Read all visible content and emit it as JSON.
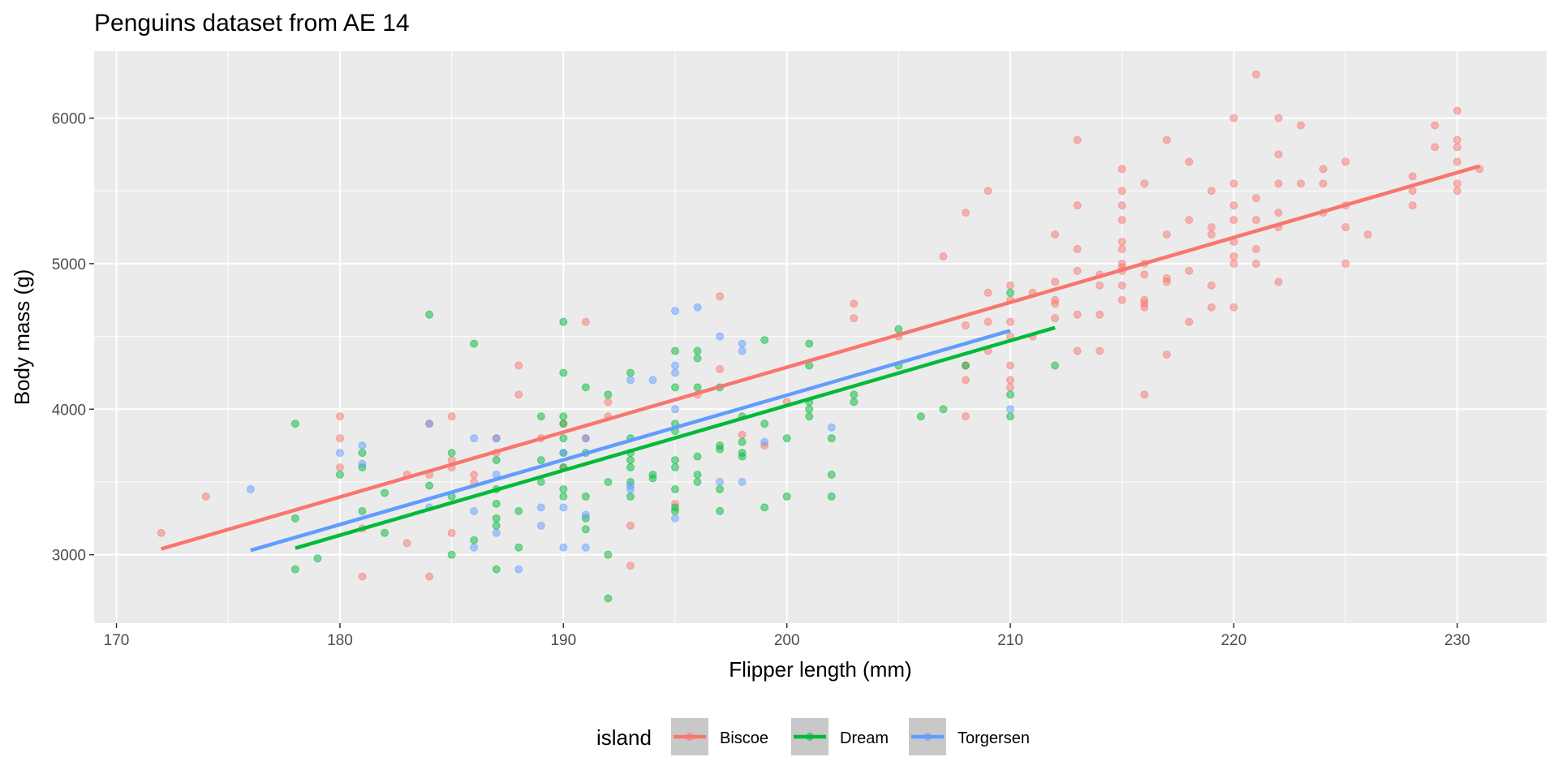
{
  "chart_data": {
    "type": "scatter",
    "title": "Penguins dataset from AE 14",
    "xlabel": "Flipper length (mm)",
    "ylabel": "Body mass (g)",
    "xlim": [
      169,
      234
    ],
    "ylim": [
      2530,
      6460
    ],
    "x_ticks": [
      170,
      180,
      190,
      200,
      210,
      220,
      230
    ],
    "y_ticks": [
      3000,
      4000,
      5000,
      6000
    ],
    "grid": true,
    "legend": {
      "title": "island",
      "placement": "bottom"
    },
    "series": [
      {
        "name": "Biscoe",
        "color": "#F8766D",
        "fit": {
          "x": [
            172,
            231
          ],
          "y": [
            3040,
            5670
          ]
        },
        "points": [
          [
            172,
            3150
          ],
          [
            174,
            3400
          ],
          [
            180,
            3950
          ],
          [
            180,
            3800
          ],
          [
            180,
            3600
          ],
          [
            181,
            2850
          ],
          [
            181,
            3180
          ],
          [
            183,
            3550
          ],
          [
            183,
            3080
          ],
          [
            184,
            3550
          ],
          [
            184,
            2850
          ],
          [
            184,
            3900
          ],
          [
            185,
            3950
          ],
          [
            185,
            3650
          ],
          [
            185,
            3150
          ],
          [
            185,
            3600
          ],
          [
            186,
            3550
          ],
          [
            186,
            3500
          ],
          [
            187,
            3800
          ],
          [
            187,
            3700
          ],
          [
            188,
            4300
          ],
          [
            188,
            4100
          ],
          [
            189,
            3800
          ],
          [
            190,
            3900
          ],
          [
            190,
            3600
          ],
          [
            191,
            4600
          ],
          [
            191,
            3800
          ],
          [
            192,
            4050
          ],
          [
            192,
            3950
          ],
          [
            193,
            3200
          ],
          [
            193,
            2925
          ],
          [
            195,
            3350
          ],
          [
            196,
            4100
          ],
          [
            197,
            4775
          ],
          [
            197,
            4275
          ],
          [
            198,
            3825
          ],
          [
            199,
            3750
          ],
          [
            200,
            4050
          ],
          [
            203,
            4725
          ],
          [
            203,
            4625
          ],
          [
            205,
            4500
          ],
          [
            207,
            5050
          ],
          [
            208,
            5350
          ],
          [
            208,
            4575
          ],
          [
            208,
            4200
          ],
          [
            208,
            3950
          ],
          [
            208,
            4300
          ],
          [
            209,
            5500
          ],
          [
            209,
            4800
          ],
          [
            209,
            4600
          ],
          [
            209,
            4400
          ],
          [
            210,
            4850
          ],
          [
            210,
            4750
          ],
          [
            210,
            4600
          ],
          [
            210,
            4500
          ],
          [
            210,
            4300
          ],
          [
            210,
            4200
          ],
          [
            210,
            4150
          ],
          [
            211,
            4800
          ],
          [
            211,
            4500
          ],
          [
            212,
            5200
          ],
          [
            212,
            4875
          ],
          [
            212,
            4750
          ],
          [
            212,
            4725
          ],
          [
            212,
            4625
          ],
          [
            213,
            5850
          ],
          [
            213,
            5400
          ],
          [
            213,
            5100
          ],
          [
            213,
            4950
          ],
          [
            213,
            4650
          ],
          [
            213,
            4400
          ],
          [
            214,
            4925
          ],
          [
            214,
            4850
          ],
          [
            214,
            4650
          ],
          [
            214,
            4400
          ],
          [
            215,
            5650
          ],
          [
            215,
            5500
          ],
          [
            215,
            5400
          ],
          [
            215,
            5300
          ],
          [
            215,
            5150
          ],
          [
            215,
            5100
          ],
          [
            215,
            5000
          ],
          [
            215,
            4975
          ],
          [
            215,
            4950
          ],
          [
            215,
            4850
          ],
          [
            215,
            4750
          ],
          [
            216,
            5550
          ],
          [
            216,
            5000
          ],
          [
            216,
            4925
          ],
          [
            216,
            4750
          ],
          [
            216,
            4725
          ],
          [
            216,
            4700
          ],
          [
            216,
            4100
          ],
          [
            217,
            5850
          ],
          [
            217,
            5200
          ],
          [
            217,
            4900
          ],
          [
            217,
            4875
          ],
          [
            217,
            4375
          ],
          [
            218,
            5700
          ],
          [
            218,
            5300
          ],
          [
            218,
            4950
          ],
          [
            218,
            4600
          ],
          [
            219,
            5500
          ],
          [
            219,
            5250
          ],
          [
            219,
            5200
          ],
          [
            219,
            4850
          ],
          [
            219,
            4700
          ],
          [
            220,
            6000
          ],
          [
            220,
            5550
          ],
          [
            220,
            5400
          ],
          [
            220,
            5300
          ],
          [
            220,
            5150
          ],
          [
            220,
            5050
          ],
          [
            220,
            5000
          ],
          [
            220,
            4700
          ],
          [
            221,
            6300
          ],
          [
            221,
            5450
          ],
          [
            221,
            5300
          ],
          [
            221,
            5100
          ],
          [
            221,
            5000
          ],
          [
            222,
            6000
          ],
          [
            222,
            5750
          ],
          [
            222,
            5550
          ],
          [
            222,
            5350
          ],
          [
            222,
            5250
          ],
          [
            222,
            4875
          ],
          [
            223,
            5950
          ],
          [
            223,
            5550
          ],
          [
            224,
            5650
          ],
          [
            224,
            5550
          ],
          [
            224,
            5350
          ],
          [
            225,
            5700
          ],
          [
            225,
            5400
          ],
          [
            225,
            5250
          ],
          [
            225,
            5000
          ],
          [
            226,
            5200
          ],
          [
            228,
            5600
          ],
          [
            228,
            5500
          ],
          [
            228,
            5400
          ],
          [
            229,
            5950
          ],
          [
            229,
            5800
          ],
          [
            230,
            6050
          ],
          [
            230,
            5850
          ],
          [
            230,
            5800
          ],
          [
            230,
            5700
          ],
          [
            230,
            5550
          ],
          [
            230,
            5500
          ],
          [
            231,
            5650
          ]
        ]
      },
      {
        "name": "Dream",
        "color": "#00BA38",
        "fit": {
          "x": [
            178,
            212
          ],
          "y": [
            3045,
            4560
          ]
        },
        "points": [
          [
            178,
            3900
          ],
          [
            178,
            3250
          ],
          [
            178,
            2900
          ],
          [
            179,
            2975
          ],
          [
            180,
            3550
          ],
          [
            181,
            3700
          ],
          [
            181,
            3600
          ],
          [
            181,
            3300
          ],
          [
            182,
            3425
          ],
          [
            182,
            3150
          ],
          [
            184,
            4650
          ],
          [
            184,
            3475
          ],
          [
            185,
            3700
          ],
          [
            185,
            3400
          ],
          [
            185,
            3000
          ],
          [
            186,
            4450
          ],
          [
            186,
            3100
          ],
          [
            187,
            3650
          ],
          [
            187,
            3450
          ],
          [
            187,
            3350
          ],
          [
            187,
            3250
          ],
          [
            187,
            3200
          ],
          [
            187,
            2900
          ],
          [
            188,
            3300
          ],
          [
            188,
            3050
          ],
          [
            189,
            3950
          ],
          [
            189,
            3650
          ],
          [
            189,
            3500
          ],
          [
            190,
            4600
          ],
          [
            190,
            4250
          ],
          [
            190,
            3950
          ],
          [
            190,
            3900
          ],
          [
            190,
            3800
          ],
          [
            190,
            3700
          ],
          [
            190,
            3600
          ],
          [
            190,
            3450
          ],
          [
            190,
            3400
          ],
          [
            191,
            4150
          ],
          [
            191,
            3700
          ],
          [
            191,
            3400
          ],
          [
            191,
            3250
          ],
          [
            191,
            3175
          ],
          [
            192,
            4100
          ],
          [
            192,
            3500
          ],
          [
            192,
            3000
          ],
          [
            192,
            2700
          ],
          [
            193,
            4250
          ],
          [
            193,
            3800
          ],
          [
            193,
            3700
          ],
          [
            193,
            3650
          ],
          [
            193,
            3600
          ],
          [
            193,
            3500
          ],
          [
            193,
            3400
          ],
          [
            194,
            3550
          ],
          [
            194,
            3525
          ],
          [
            195,
            4400
          ],
          [
            195,
            4150
          ],
          [
            195,
            3900
          ],
          [
            195,
            3850
          ],
          [
            195,
            3650
          ],
          [
            195,
            3600
          ],
          [
            195,
            3450
          ],
          [
            195,
            3325
          ],
          [
            195,
            3300
          ],
          [
            196,
            4400
          ],
          [
            196,
            4350
          ],
          [
            196,
            4150
          ],
          [
            196,
            3675
          ],
          [
            196,
            3550
          ],
          [
            196,
            3500
          ],
          [
            197,
            4150
          ],
          [
            197,
            3750
          ],
          [
            197,
            3725
          ],
          [
            197,
            3450
          ],
          [
            197,
            3300
          ],
          [
            198,
            3950
          ],
          [
            198,
            3775
          ],
          [
            198,
            3700
          ],
          [
            198,
            3675
          ],
          [
            199,
            4475
          ],
          [
            199,
            3900
          ],
          [
            199,
            3325
          ],
          [
            200,
            3800
          ],
          [
            200,
            3400
          ],
          [
            201,
            4450
          ],
          [
            201,
            4300
          ],
          [
            201,
            4050
          ],
          [
            201,
            4000
          ],
          [
            201,
            3950
          ],
          [
            202,
            3800
          ],
          [
            202,
            3550
          ],
          [
            202,
            3400
          ],
          [
            203,
            4100
          ],
          [
            203,
            4050
          ],
          [
            205,
            4550
          ],
          [
            205,
            4300
          ],
          [
            206,
            3950
          ],
          [
            207,
            4000
          ],
          [
            208,
            4300
          ],
          [
            210,
            4800
          ],
          [
            210,
            4100
          ],
          [
            210,
            3950
          ],
          [
            212,
            4300
          ]
        ]
      },
      {
        "name": "Torgersen",
        "color": "#619CFF",
        "fit": {
          "x": [
            176,
            210
          ],
          "y": [
            3030,
            4540
          ]
        },
        "points": [
          [
            176,
            3450
          ],
          [
            180,
            3700
          ],
          [
            181,
            3750
          ],
          [
            181,
            3625
          ],
          [
            184,
            3900
          ],
          [
            184,
            3325
          ],
          [
            186,
            3800
          ],
          [
            186,
            3300
          ],
          [
            186,
            3050
          ],
          [
            187,
            3800
          ],
          [
            187,
            3550
          ],
          [
            187,
            3150
          ],
          [
            188,
            2900
          ],
          [
            189,
            3325
          ],
          [
            189,
            3200
          ],
          [
            190,
            3700
          ],
          [
            190,
            3325
          ],
          [
            190,
            3050
          ],
          [
            191,
            3800
          ],
          [
            191,
            3275
          ],
          [
            191,
            3050
          ],
          [
            193,
            4200
          ],
          [
            193,
            3475
          ],
          [
            193,
            3450
          ],
          [
            194,
            4200
          ],
          [
            195,
            4675
          ],
          [
            195,
            4300
          ],
          [
            195,
            4250
          ],
          [
            195,
            4000
          ],
          [
            195,
            3250
          ],
          [
            196,
            4700
          ],
          [
            197,
            4500
          ],
          [
            197,
            3500
          ],
          [
            198,
            4450
          ],
          [
            198,
            4400
          ],
          [
            198,
            3500
          ],
          [
            199,
            3775
          ],
          [
            202,
            3875
          ],
          [
            210,
            4000
          ]
        ]
      }
    ]
  }
}
